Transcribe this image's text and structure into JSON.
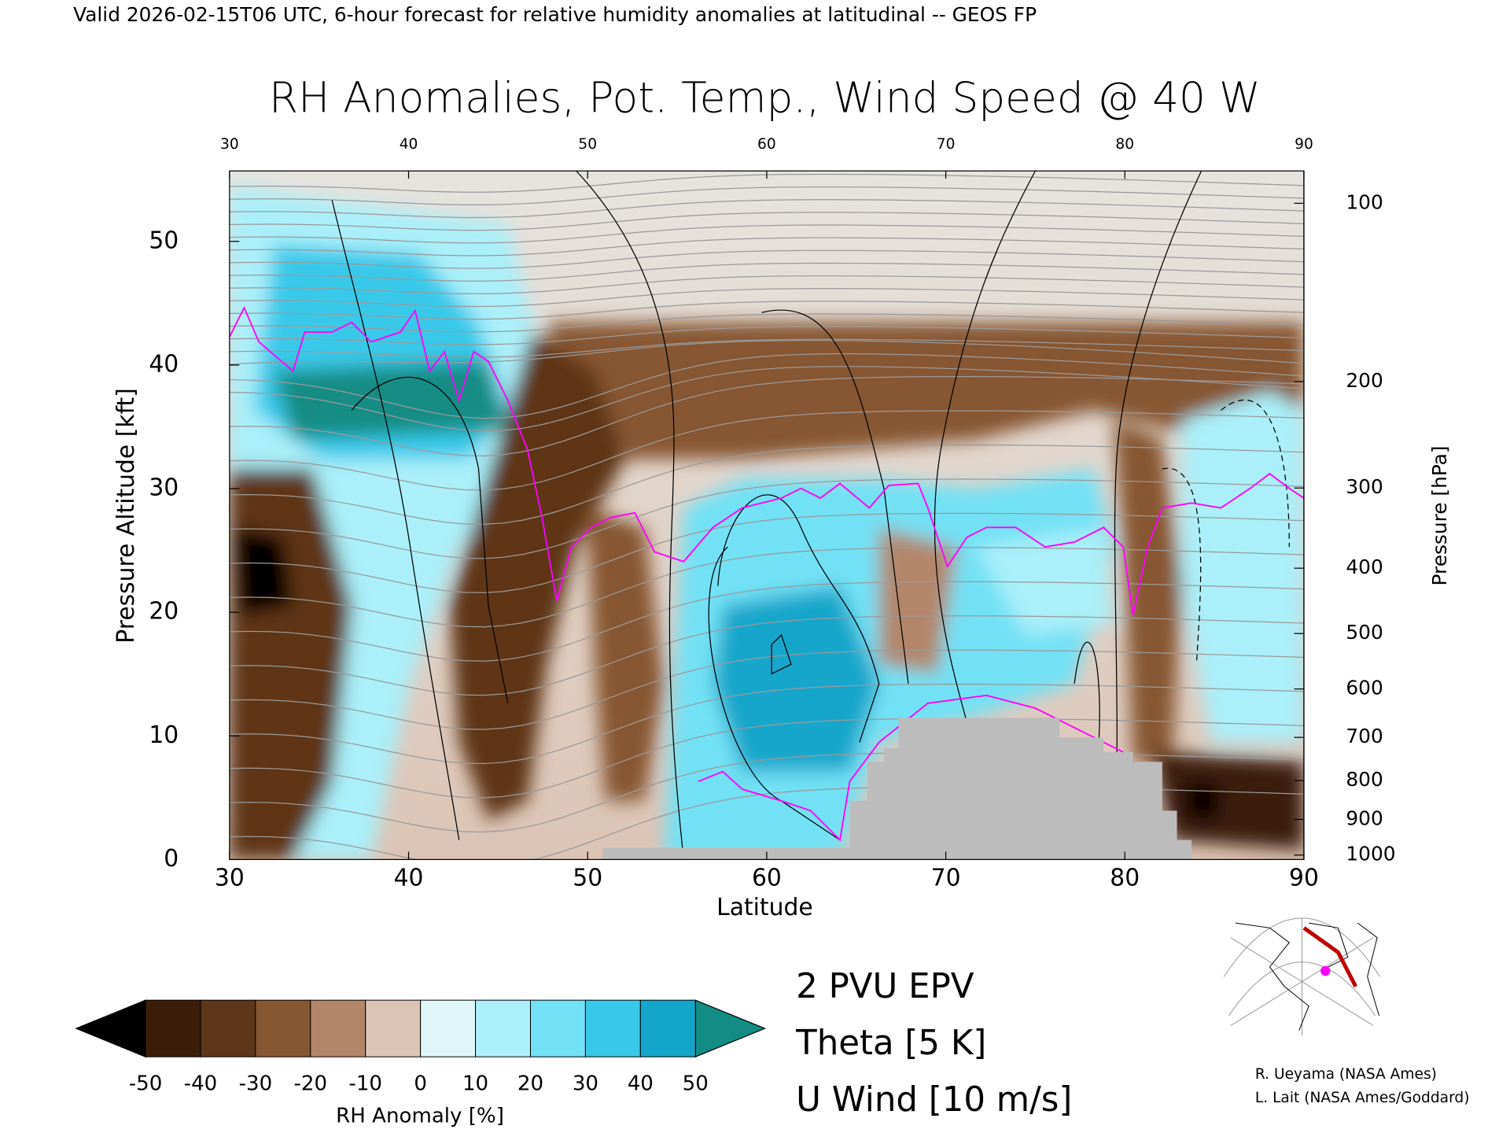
{
  "chart_data": {
    "type": "contour",
    "header": "Valid 2026-02-15T06 UTC, 6-hour forecast for relative humidity anomalies at latitudinal -- GEOS FP",
    "title": "RH Anomalies, Pot. Temp., Wind Speed @ 40 W",
    "x_label": "Latitude",
    "y_label": "Pressure Altitude [kft]",
    "y2_label": "Pressure [hPa]",
    "xlim": [
      30,
      90
    ],
    "xticks": [
      30,
      40,
      50,
      60,
      70,
      80,
      90
    ],
    "ylim": [
      0,
      55.7
    ],
    "yticks": [
      0,
      10,
      20,
      30,
      40,
      50
    ],
    "y2lim": [
      1013.25,
      88.2
    ],
    "y2ticks": [
      100,
      200,
      300,
      400,
      500,
      600,
      700,
      800,
      900,
      1000
    ],
    "colorbar": {
      "label": "RH Anomaly [%]",
      "ticks": [
        -50,
        -40,
        -30,
        -20,
        -10,
        0,
        10,
        20,
        30,
        40,
        50
      ],
      "colors": [
        "#3b1d0a",
        "#5e3619",
        "#875732",
        "#b3866a",
        "#dcc4b5",
        "#dff6f8",
        "#aaeff9",
        "#72e1f5",
        "#38c9ea",
        "#14a6cb"
      ],
      "under_color": "#000000",
      "over_color": "#128c84"
    },
    "legend": [
      {
        "name": "2 PVU EPV",
        "color": "#ff00ff"
      },
      {
        "name": "Theta [5 K]",
        "color": "#b4b4b4"
      },
      {
        "name": "U Wind [10 m/s]",
        "color": "#000000"
      }
    ],
    "credits": [
      "R. Ueyama (NASA Ames)",
      "L. Lait (NASA Ames/Goddard)"
    ]
  }
}
